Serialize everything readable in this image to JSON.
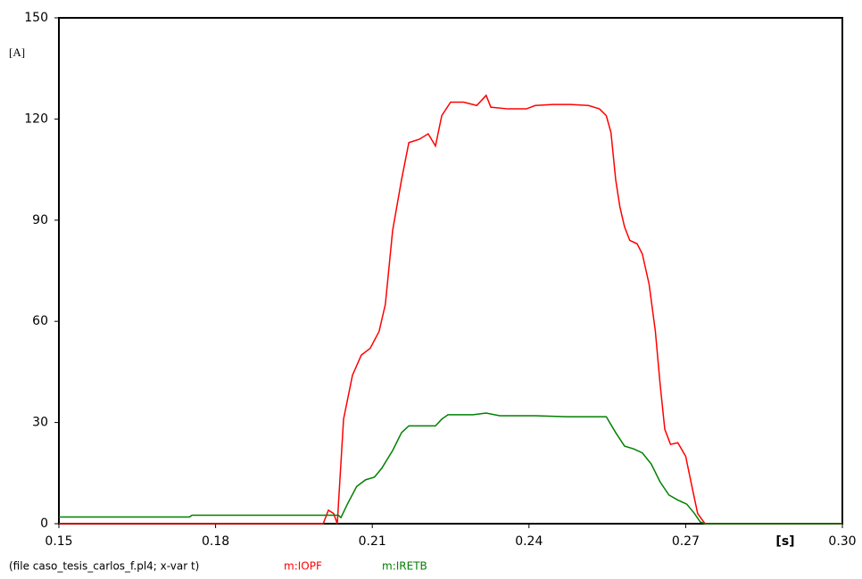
{
  "chart_data": {
    "type": "line",
    "caption": "(file caso_tesis_carlos_f.pl4; x-var t)",
    "xlabel": "[s]",
    "ylabel": "[A]",
    "xlim": [
      0.15,
      0.3
    ],
    "ylim": [
      0,
      150
    ],
    "xticks": [
      0.15,
      0.18,
      0.21,
      0.24,
      0.27,
      {
        "value": 0.3,
        "label": "0.30"
      }
    ],
    "yticks": [
      0,
      30,
      60,
      90,
      120,
      150
    ],
    "series": [
      {
        "name": "m:IOPF",
        "color": "#ff0000",
        "x": [
          0.15,
          0.2006,
          0.2016,
          0.2026,
          0.2033,
          0.2045,
          0.2062,
          0.2079,
          0.2096,
          0.2113,
          0.2125,
          0.2139,
          0.2156,
          0.217,
          0.219,
          0.2207,
          0.2221,
          0.2233,
          0.225,
          0.2275,
          0.23,
          0.2318,
          0.2327,
          0.236,
          0.2395,
          0.2412,
          0.2446,
          0.248,
          0.2514,
          0.2535,
          0.2548,
          0.2557,
          0.2566,
          0.2574,
          0.2583,
          0.2593,
          0.2607,
          0.2617,
          0.263,
          0.2642,
          0.2651,
          0.266,
          0.2671,
          0.2685,
          0.27,
          0.2712,
          0.2723,
          0.2737,
          0.3
        ],
        "values": [
          0,
          0,
          4,
          3,
          0,
          31,
          44,
          50,
          52,
          57,
          65,
          87,
          102,
          113,
          114,
          115.6,
          112,
          121,
          125,
          125,
          124,
          127,
          123.5,
          123,
          123,
          124,
          124.3,
          124.3,
          124,
          123,
          121,
          116,
          102,
          94,
          88,
          84,
          83,
          80,
          71,
          57,
          41.5,
          28,
          23.5,
          24,
          20,
          11,
          3,
          0,
          0
        ]
      },
      {
        "name": "m:IRETB",
        "color": "#008000",
        "x": [
          0.15,
          0.175,
          0.1755,
          0.2035,
          0.204,
          0.2053,
          0.207,
          0.2087,
          0.2104,
          0.2118,
          0.2139,
          0.2156,
          0.217,
          0.219,
          0.2207,
          0.2221,
          0.2233,
          0.2245,
          0.2293,
          0.2318,
          0.2344,
          0.2395,
          0.2412,
          0.248,
          0.2548,
          0.2566,
          0.2583,
          0.26,
          0.2617,
          0.2634,
          0.2651,
          0.2668,
          0.2685,
          0.2702,
          0.2716,
          0.2728,
          0.2737,
          0.3
        ],
        "values": [
          2,
          2,
          2.5,
          2.5,
          1.8,
          6,
          11,
          13,
          13.8,
          16.4,
          21.7,
          27,
          29,
          29,
          29,
          29,
          31,
          32.3,
          32.3,
          32.8,
          32,
          32,
          32,
          31.7,
          31.7,
          27,
          23,
          22.2,
          21,
          17.7,
          12.4,
          8.5,
          7,
          5.8,
          3.2,
          0.5,
          0,
          0
        ]
      }
    ]
  }
}
